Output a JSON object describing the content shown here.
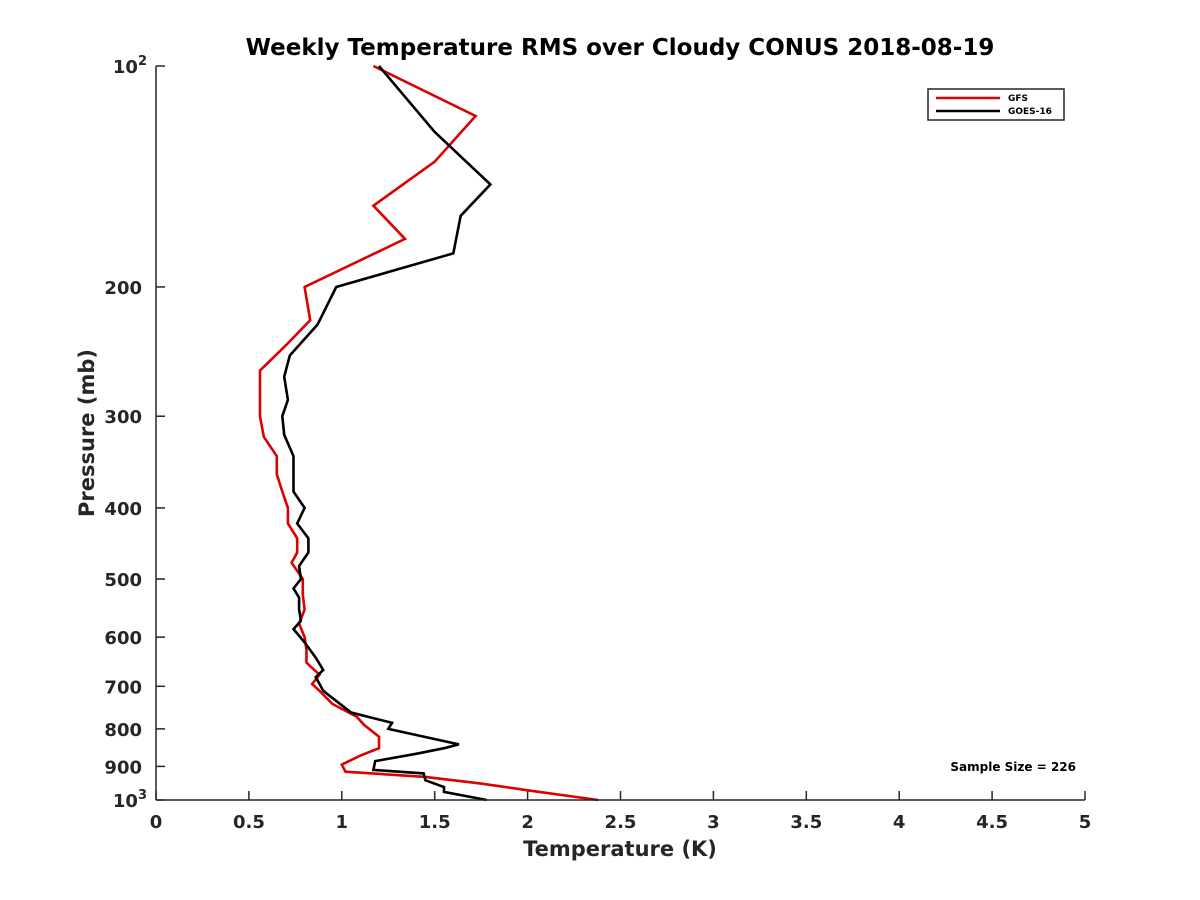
{
  "chart_data": {
    "type": "line",
    "title": "Weekly Temperature RMS over Cloudy CONUS 2018-08-19",
    "xlabel": "Temperature (K)",
    "ylabel": "Pressure (mb)",
    "xlim": [
      0,
      5
    ],
    "ylim": [
      100,
      1000
    ],
    "y_scale": "log",
    "y_reversed": true,
    "grid": false,
    "legend_position": "top-right",
    "x_ticks": [
      {
        "value": 0,
        "label": "0"
      },
      {
        "value": 0.5,
        "label": "0.5"
      },
      {
        "value": 1,
        "label": "1"
      },
      {
        "value": 1.5,
        "label": "1.5"
      },
      {
        "value": 2,
        "label": "2"
      },
      {
        "value": 2.5,
        "label": "2.5"
      },
      {
        "value": 3,
        "label": "3"
      },
      {
        "value": 3.5,
        "label": "3.5"
      },
      {
        "value": 4,
        "label": "4"
      },
      {
        "value": 4.5,
        "label": "4.5"
      },
      {
        "value": 5,
        "label": "5"
      }
    ],
    "y_ticks": [
      {
        "value": 100,
        "label": "10",
        "sup": "2"
      },
      {
        "value": 200,
        "label": "200",
        "sup": ""
      },
      {
        "value": 300,
        "label": "300",
        "sup": ""
      },
      {
        "value": 400,
        "label": "400",
        "sup": ""
      },
      {
        "value": 500,
        "label": "500",
        "sup": ""
      },
      {
        "value": 600,
        "label": "600",
        "sup": ""
      },
      {
        "value": 700,
        "label": "700",
        "sup": ""
      },
      {
        "value": 800,
        "label": "800",
        "sup": ""
      },
      {
        "value": 900,
        "label": "900",
        "sup": ""
      },
      {
        "value": 1000,
        "label": "10",
        "sup": "3"
      }
    ],
    "annotation": "Sample Size = 226",
    "series": [
      {
        "name": "GFS",
        "color": "#dd0000",
        "points": [
          [
            1.17,
            100
          ],
          [
            1.72,
            117
          ],
          [
            1.5,
            135
          ],
          [
            1.17,
            155
          ],
          [
            1.34,
            172
          ],
          [
            0.8,
            200
          ],
          [
            0.83,
            222
          ],
          [
            0.7,
            240
          ],
          [
            0.56,
            260
          ],
          [
            0.56,
            280
          ],
          [
            0.56,
            300
          ],
          [
            0.58,
            320
          ],
          [
            0.65,
            340
          ],
          [
            0.65,
            360
          ],
          [
            0.68,
            380
          ],
          [
            0.71,
            400
          ],
          [
            0.71,
            420
          ],
          [
            0.76,
            440
          ],
          [
            0.76,
            460
          ],
          [
            0.73,
            475
          ],
          [
            0.79,
            500
          ],
          [
            0.79,
            525
          ],
          [
            0.8,
            550
          ],
          [
            0.77,
            575
          ],
          [
            0.8,
            600
          ],
          [
            0.81,
            625
          ],
          [
            0.81,
            650
          ],
          [
            0.88,
            675
          ],
          [
            0.84,
            695
          ],
          [
            0.88,
            710
          ],
          [
            0.95,
            740
          ],
          [
            1.08,
            770
          ],
          [
            1.12,
            790
          ],
          [
            1.2,
            820
          ],
          [
            1.2,
            850
          ],
          [
            1.1,
            870
          ],
          [
            1.0,
            895
          ],
          [
            1.02,
            915
          ],
          [
            1.45,
            930
          ],
          [
            1.75,
            950
          ],
          [
            2.0,
            970
          ],
          [
            2.38,
            1000
          ]
        ]
      },
      {
        "name": "GOES-16",
        "color": "#000000",
        "points": [
          [
            1.2,
            100
          ],
          [
            1.5,
            123
          ],
          [
            1.8,
            145
          ],
          [
            1.64,
            160
          ],
          [
            1.6,
            180
          ],
          [
            0.97,
            200
          ],
          [
            0.87,
            225
          ],
          [
            0.72,
            248
          ],
          [
            0.69,
            265
          ],
          [
            0.71,
            285
          ],
          [
            0.68,
            300
          ],
          [
            0.69,
            318
          ],
          [
            0.74,
            340
          ],
          [
            0.74,
            360
          ],
          [
            0.74,
            380
          ],
          [
            0.8,
            400
          ],
          [
            0.76,
            420
          ],
          [
            0.82,
            440
          ],
          [
            0.82,
            460
          ],
          [
            0.77,
            480
          ],
          [
            0.78,
            500
          ],
          [
            0.74,
            515
          ],
          [
            0.77,
            530
          ],
          [
            0.77,
            550
          ],
          [
            0.78,
            570
          ],
          [
            0.74,
            585
          ],
          [
            0.8,
            610
          ],
          [
            0.86,
            640
          ],
          [
            0.9,
            665
          ],
          [
            0.86,
            680
          ],
          [
            0.9,
            710
          ],
          [
            1.05,
            760
          ],
          [
            1.27,
            785
          ],
          [
            1.25,
            800
          ],
          [
            1.63,
            840
          ],
          [
            1.55,
            850
          ],
          [
            1.4,
            865
          ],
          [
            1.18,
            885
          ],
          [
            1.17,
            910
          ],
          [
            1.44,
            920
          ],
          [
            1.45,
            940
          ],
          [
            1.55,
            960
          ],
          [
            1.55,
            975
          ],
          [
            1.78,
            1000
          ]
        ]
      }
    ]
  }
}
